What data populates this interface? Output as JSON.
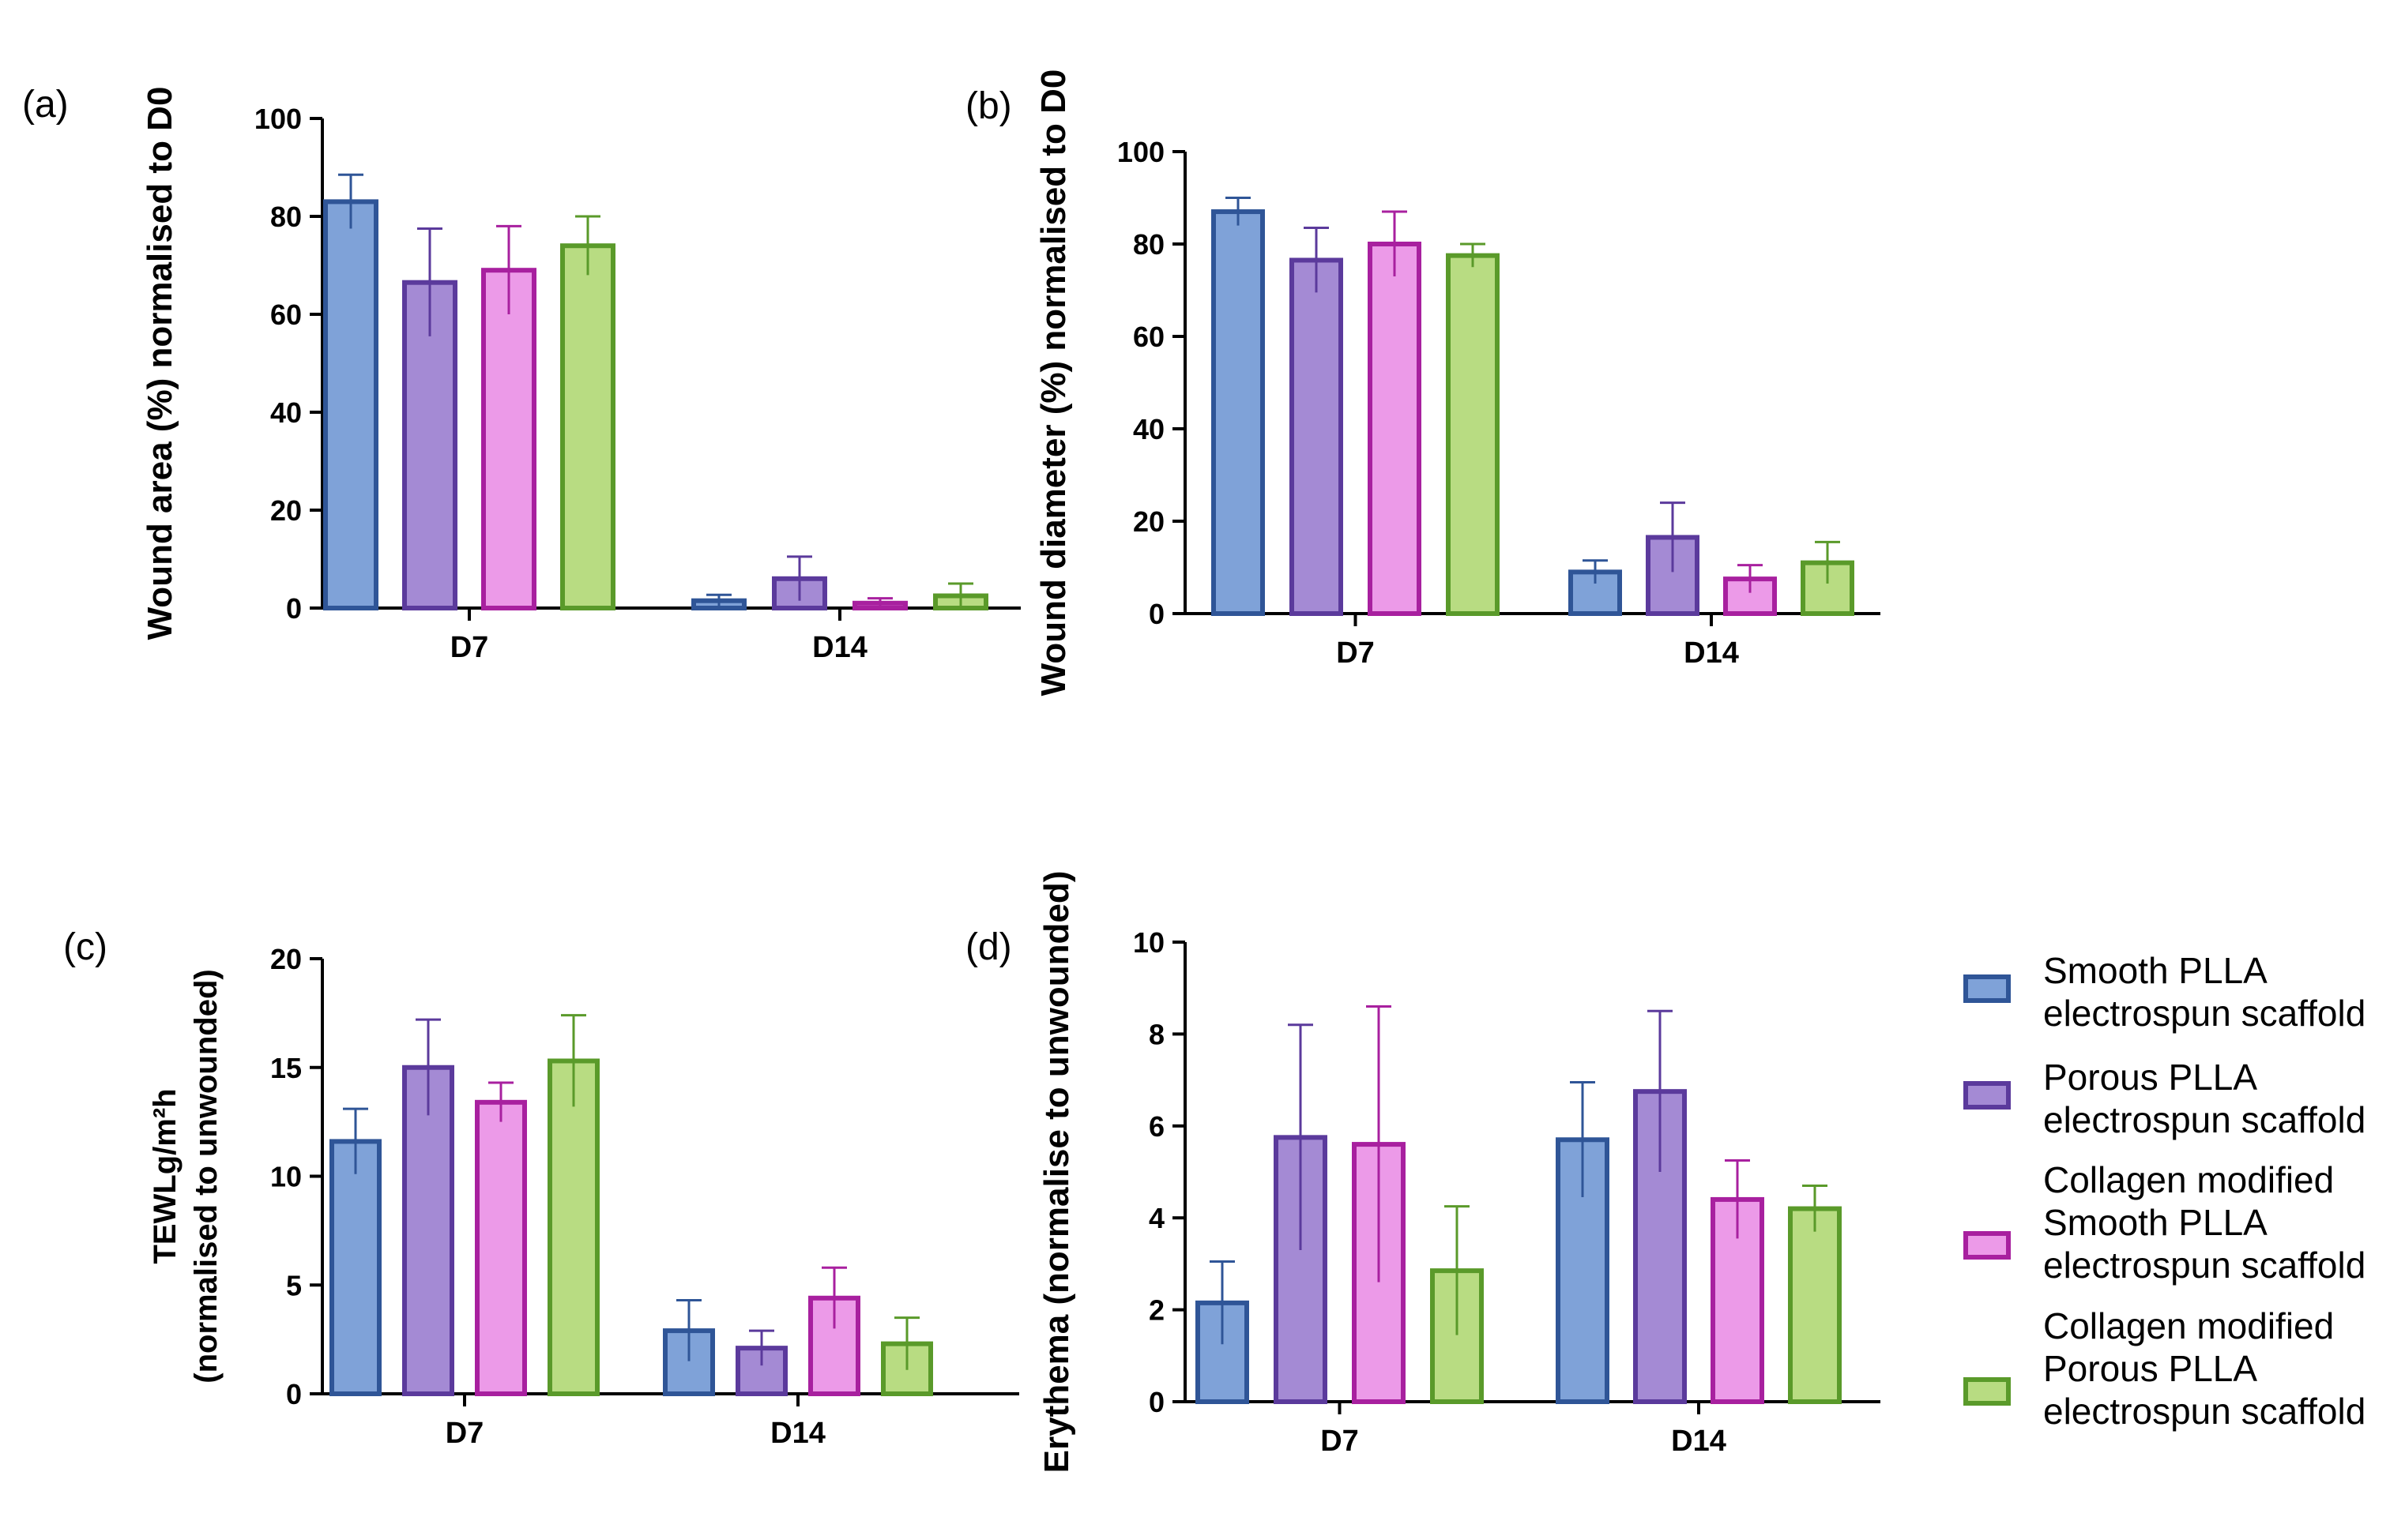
{
  "colors": {
    "Smooth PLLA electrospun scaffold": {
      "fill": "#7fa2d8",
      "stroke": "#2f5597"
    },
    "Porous PLLA electrospun scaffold": {
      "fill": "#a48ad4",
      "stroke": "#5b3a9c"
    },
    "Collagen modified Smooth PLLA electrospun scaffold": {
      "fill": "#ec9ae8",
      "stroke": "#a8209f"
    },
    "Collagen modified Porous PLLA electrospun scaffold": {
      "fill": "#b8dc82",
      "stroke": "#5a9a2a"
    }
  },
  "legend": {
    "entries": [
      {
        "lines": [
          "Smooth PLLA",
          "electrospun scaffold"
        ]
      },
      {
        "lines": [
          "Porous PLLA",
          "electrospun scaffold"
        ]
      },
      {
        "lines": [
          "Collagen modified",
          "Smooth PLLA",
          "electrospun scaffold"
        ]
      },
      {
        "lines": [
          "Collagen modified",
          "Porous PLLA",
          "electrospun scaffold"
        ]
      }
    ]
  },
  "chart_data": [
    {
      "panel": "(a)",
      "type": "bar",
      "ylabel": "Wound area (%) normalised to D0",
      "ylim": [
        0,
        100
      ],
      "yticks": [
        0,
        20,
        40,
        60,
        80,
        100
      ],
      "categories": [
        "D7",
        "D14"
      ],
      "series": [
        {
          "name": "Smooth PLLA electrospun scaffold",
          "values": [
            83,
            1.5
          ],
          "errors": [
            5.5,
            1.2
          ]
        },
        {
          "name": "Porous PLLA electrospun scaffold",
          "values": [
            66.5,
            6
          ],
          "errors": [
            11,
            4.5
          ]
        },
        {
          "name": "Collagen modified Smooth PLLA electrospun scaffold",
          "values": [
            69,
            1
          ],
          "errors": [
            9,
            1
          ]
        },
        {
          "name": "Collagen modified Porous PLLA electrospun scaffold",
          "values": [
            74,
            2.5
          ],
          "errors": [
            6,
            2.5
          ]
        }
      ]
    },
    {
      "panel": "(b)",
      "type": "bar",
      "ylabel": "Wound diameter (%) normalised to D0",
      "ylim": [
        0,
        100
      ],
      "yticks": [
        0,
        20,
        40,
        60,
        80,
        100
      ],
      "categories": [
        "D7",
        "D14"
      ],
      "series": [
        {
          "name": "Smooth PLLA electrospun scaffold",
          "values": [
            87,
            9
          ],
          "errors": [
            3,
            2.5
          ]
        },
        {
          "name": "Porous PLLA electrospun scaffold",
          "values": [
            76.5,
            16.5
          ],
          "errors": [
            7,
            7.5
          ]
        },
        {
          "name": "Collagen modified Smooth PLLA electrospun scaffold",
          "values": [
            80,
            7.5
          ],
          "errors": [
            7,
            3
          ]
        },
        {
          "name": "Collagen modified Porous PLLA electrospun scaffold",
          "values": [
            77.5,
            11
          ],
          "errors": [
            2.5,
            4.5
          ]
        }
      ]
    },
    {
      "panel": "(c)",
      "type": "bar",
      "ylabel_lines": [
        "TEWLg/m²h",
        "(normalised to unwounded)"
      ],
      "ylim": [
        0,
        20
      ],
      "yticks": [
        0,
        5,
        10,
        15,
        20
      ],
      "categories": [
        "D7",
        "D14"
      ],
      "series": [
        {
          "name": "Smooth PLLA electrospun scaffold",
          "values": [
            11.6,
            2.9
          ],
          "errors": [
            1.5,
            1.4
          ]
        },
        {
          "name": "Porous PLLA electrospun scaffold",
          "values": [
            15,
            2.1
          ],
          "errors": [
            2.2,
            0.8
          ]
        },
        {
          "name": "Collagen modified Smooth PLLA electrospun scaffold",
          "values": [
            13.4,
            4.4
          ],
          "errors": [
            0.9,
            1.4
          ]
        },
        {
          "name": "Collagen modified Porous PLLA electrospun scaffold",
          "values": [
            15.3,
            2.3
          ],
          "errors": [
            2.1,
            1.2
          ]
        }
      ]
    },
    {
      "panel": "(d)",
      "type": "bar",
      "ylabel": "Erythema (normalise to unwounded)",
      "ylim": [
        0,
        10
      ],
      "yticks": [
        0,
        2,
        4,
        6,
        8,
        10
      ],
      "categories": [
        "D7",
        "D14"
      ],
      "series": [
        {
          "name": "Smooth PLLA electrospun scaffold",
          "values": [
            2.15,
            5.7
          ],
          "errors": [
            0.9,
            1.25
          ]
        },
        {
          "name": "Porous PLLA electrospun scaffold",
          "values": [
            5.75,
            6.75
          ],
          "errors": [
            2.45,
            1.75
          ]
        },
        {
          "name": "Collagen modified Smooth PLLA electrospun scaffold",
          "values": [
            5.6,
            4.4
          ],
          "errors": [
            3,
            0.85
          ]
        },
        {
          "name": "Collagen modified Porous PLLA electrospun scaffold",
          "values": [
            2.85,
            4.2
          ],
          "errors": [
            1.4,
            0.5
          ]
        }
      ]
    }
  ]
}
